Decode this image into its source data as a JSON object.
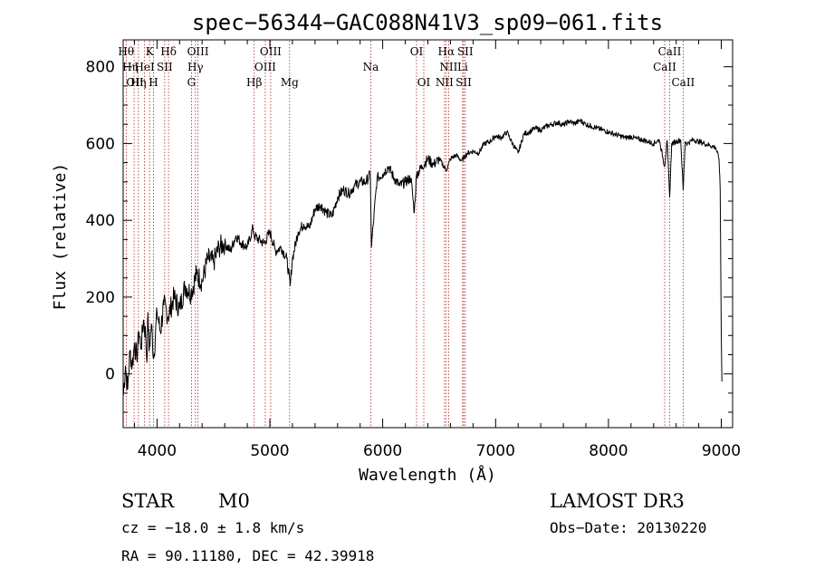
{
  "chart_data": {
    "type": "line",
    "title": "spec−56344−GAC088N41V3_sp09−061.fits",
    "xlabel": "Wavelength (Å)",
    "ylabel": "Flux (relative)",
    "xlim": [
      3700,
      9100
    ],
    "ylim": [
      -140,
      870
    ],
    "x_ticks": [
      4000,
      5000,
      6000,
      7000,
      8000,
      9000
    ],
    "x_tick_labels": [
      "4000",
      "5000",
      "6000",
      "7000",
      "8000",
      "9000"
    ],
    "y_ticks": [
      0,
      200,
      400,
      600,
      800
    ],
    "y_tick_labels": [
      "0",
      "200",
      "400",
      "600",
      "800"
    ],
    "series": [
      {
        "name": "flux",
        "color": "#000000",
        "x": [
          3700,
          3720,
          3740,
          3760,
          3780,
          3800,
          3820,
          3840,
          3860,
          3880,
          3900,
          3910,
          3920,
          3930,
          3950,
          3970,
          4000,
          4030,
          4060,
          4100,
          4150,
          4200,
          4250,
          4300,
          4350,
          4400,
          4450,
          4500,
          4550,
          4600,
          4650,
          4700,
          4750,
          4800,
          4850,
          4860,
          4900,
          4950,
          5000,
          5050,
          5100,
          5150,
          5180,
          5200,
          5250,
          5300,
          5350,
          5400,
          5450,
          5500,
          5550,
          5600,
          5650,
          5700,
          5750,
          5800,
          5850,
          5890,
          5900,
          5950,
          6000,
          6050,
          6100,
          6150,
          6200,
          6250,
          6280,
          6300,
          6350,
          6400,
          6450,
          6500,
          6563,
          6600,
          6650,
          6700,
          6750,
          6800,
          6850,
          6900,
          6950,
          7000,
          7050,
          7100,
          7150,
          7200,
          7250,
          7300,
          7350,
          7400,
          7450,
          7500,
          7550,
          7600,
          7650,
          7700,
          7750,
          7800,
          7850,
          7900,
          7950,
          8000,
          8050,
          8100,
          8150,
          8200,
          8250,
          8300,
          8350,
          8400,
          8450,
          8498,
          8520,
          8542,
          8560,
          8600,
          8640,
          8662,
          8680,
          8700,
          8750,
          8800,
          8850,
          8900,
          8950,
          8980,
          8990,
          9000,
          9005
        ],
        "y": [
          -60,
          20,
          -40,
          60,
          20,
          80,
          40,
          110,
          70,
          140,
          100,
          30,
          160,
          60,
          130,
          40,
          160,
          110,
          180,
          150,
          200,
          170,
          230,
          210,
          260,
          240,
          300,
          290,
          330,
          340,
          320,
          360,
          340,
          330,
          380,
          360,
          350,
          340,
          370,
          320,
          330,
          300,
          230,
          300,
          370,
          390,
          380,
          430,
          440,
          420,
          410,
          460,
          480,
          470,
          490,
          500,
          500,
          520,
          330,
          510,
          520,
          540,
          510,
          490,
          500,
          510,
          420,
          520,
          540,
          560,
          545,
          560,
          530,
          560,
          570,
          555,
          575,
          580,
          575,
          600,
          605,
          620,
          615,
          630,
          600,
          575,
          625,
          630,
          640,
          635,
          645,
          650,
          655,
          648,
          658,
          652,
          660,
          650,
          645,
          640,
          635,
          630,
          625,
          620,
          615,
          618,
          612,
          610,
          605,
          600,
          610,
          540,
          608,
          460,
          600,
          605,
          610,
          480,
          605,
          600,
          610,
          605,
          600,
          595,
          590,
          560,
          480,
          100,
          -20
        ]
      }
    ],
    "emission_lines": [
      {
        "name": "OІІ",
        "wave": 3727
      },
      {
        "name": "Hθ",
        "wave": 3797
      },
      {
        "name": "Hη",
        "wave": 3835
      },
      {
        "name": "HeI",
        "wave": 3889
      },
      {
        "name": "Hδ",
        "wave": 4102
      },
      {
        "name": "Hγ",
        "wave": 4340
      },
      {
        "name": "OIII",
        "wave": 4363
      },
      {
        "name": "Hβ",
        "wave": 4861
      },
      {
        "name": "OIII",
        "wave": 4959
      },
      {
        "name": "OIII",
        "wave": 5007
      },
      {
        "name": "OI",
        "wave": 6300
      },
      {
        "name": "OI",
        "wave": 6364
      },
      {
        "name": "NII",
        "wave": 6548
      },
      {
        "name": "Hα",
        "wave": 6563
      },
      {
        "name": "NII",
        "wave": 6584
      },
      {
        "name": "SII",
        "wave": 6717
      },
      {
        "name": "SII",
        "wave": 6731
      }
    ],
    "absorption_lines": [
      {
        "name": "K",
        "wave": 3934
      },
      {
        "name": "H",
        "wave": 3969
      },
      {
        "name": "SII",
        "wave": 4068
      },
      {
        "name": "G",
        "wave": 4305
      },
      {
        "name": "Mg",
        "wave": 5175
      },
      {
        "name": "Na",
        "wave": 5894
      },
      {
        "name": "Li",
        "wave": 6708
      },
      {
        "name": "CaII",
        "wave": 8498
      },
      {
        "name": "CaII",
        "wave": 8542
      },
      {
        "name": "CaII",
        "wave": 8662
      }
    ],
    "line_labels": [
      {
        "text": "Hθ",
        "wave": 3797,
        "row": 0,
        "anchor": "end"
      },
      {
        "text": "K",
        "wave": 3934,
        "row": 0,
        "anchor": "middle"
      },
      {
        "text": "Hδ",
        "wave": 4102,
        "row": 0,
        "anchor": "middle"
      },
      {
        "text": "OIII",
        "wave": 4363,
        "row": 0,
        "anchor": "middle"
      },
      {
        "text": "OIII",
        "wave": 5007,
        "row": 0,
        "anchor": "middle"
      },
      {
        "text": "OI",
        "wave": 6300,
        "row": 0,
        "anchor": "middle"
      },
      {
        "text": "Hα",
        "wave": 6563,
        "row": 0,
        "anchor": "middle"
      },
      {
        "text": "SII",
        "wave": 6731,
        "row": 0,
        "anchor": "middle"
      },
      {
        "text": "CaII",
        "wave": 8542,
        "row": 0,
        "anchor": "middle"
      },
      {
        "text": "Hη",
        "wave": 3835,
        "row": 1,
        "anchor": "end"
      },
      {
        "text": "HeI",
        "wave": 3889,
        "row": 1,
        "anchor": "middle"
      },
      {
        "text": "SII",
        "wave": 4068,
        "row": 1,
        "anchor": "middle"
      },
      {
        "text": "Hγ",
        "wave": 4340,
        "row": 1,
        "anchor": "middle"
      },
      {
        "text": "OIII",
        "wave": 4959,
        "row": 1,
        "anchor": "middle"
      },
      {
        "text": "NII",
        "wave": 6584,
        "row": 1,
        "anchor": "middle"
      },
      {
        "text": "Li",
        "wave": 6708,
        "row": 1,
        "anchor": "middle"
      },
      {
        "text": "CaII",
        "wave": 8498,
        "row": 1,
        "anchor": "middle"
      },
      {
        "text": "OII",
        "wave": 3727,
        "row": 2,
        "anchor": "start"
      },
      {
        "text": "Hη",
        "wave": 3835,
        "row": 2,
        "anchor": "middle"
      },
      {
        "text": "H",
        "wave": 3969,
        "row": 2,
        "anchor": "middle"
      },
      {
        "text": "G",
        "wave": 4305,
        "row": 2,
        "anchor": "middle"
      },
      {
        "text": "Hβ",
        "wave": 4861,
        "row": 2,
        "anchor": "middle"
      },
      {
        "text": "Mg",
        "wave": 5175,
        "row": 2,
        "anchor": "middle"
      },
      {
        "text": "Na",
        "wave": 5894,
        "row": 1,
        "anchor": "middle"
      },
      {
        "text": "OI",
        "wave": 6364,
        "row": 2,
        "anchor": "middle"
      },
      {
        "text": "NII",
        "wave": 6548,
        "row": 2,
        "anchor": "middle"
      },
      {
        "text": "SII",
        "wave": 6717,
        "row": 2,
        "anchor": "middle"
      },
      {
        "text": "CaII",
        "wave": 8662,
        "row": 2,
        "anchor": "middle"
      }
    ],
    "line_color": "#b22222"
  },
  "footer": {
    "object_class": "STAR",
    "subclass": "M0",
    "redshift": "cz = −18.0 ± 1.8 km/s",
    "coords": "RA =  90.11180, DEC =  42.39918",
    "survey": "LAMOST DR3",
    "obs_date": "Obs−Date: 20130220"
  }
}
